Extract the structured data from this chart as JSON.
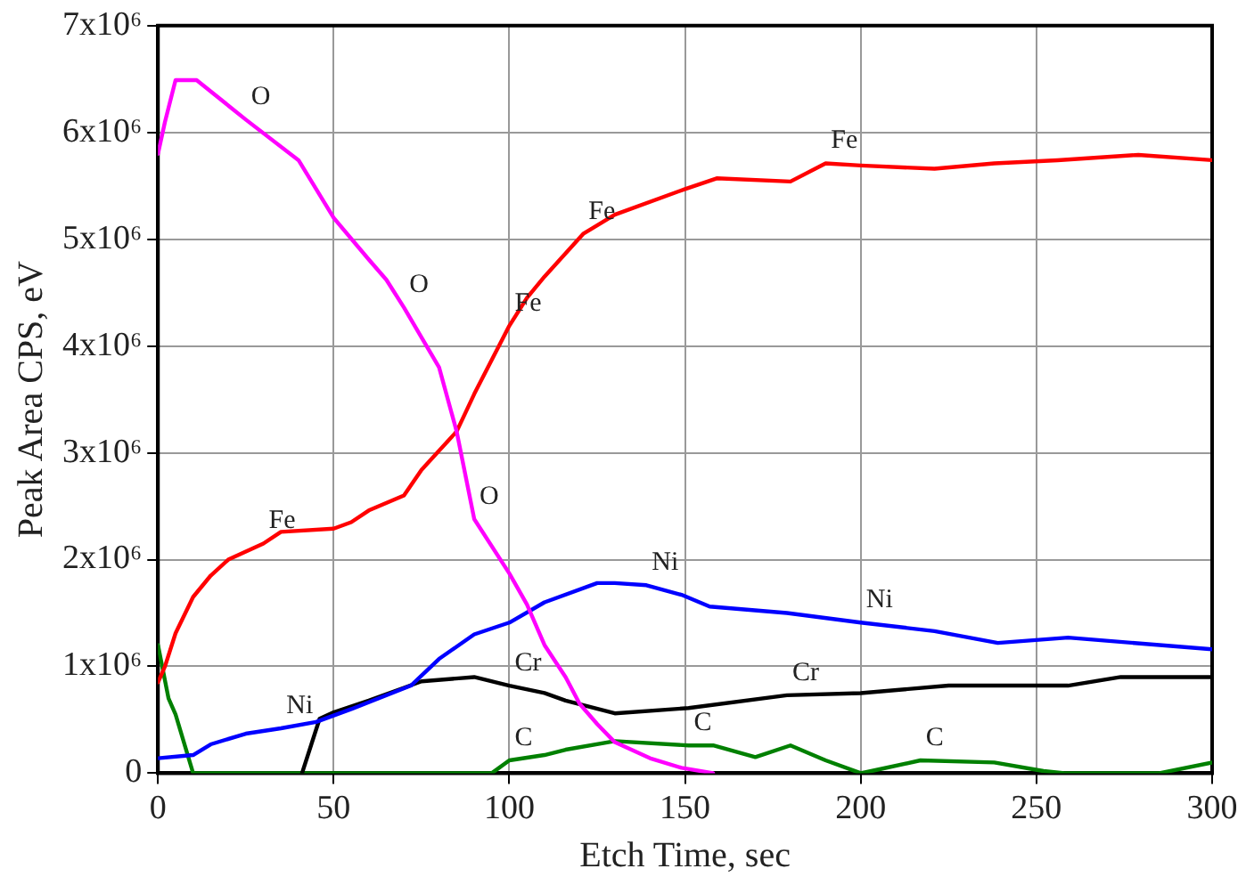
{
  "chart_data": {
    "type": "line",
    "xlabel": "Etch Time, sec",
    "ylabel": "Peak Area CPS, eV",
    "xlim": [
      0,
      300
    ],
    "xticks": [
      0,
      50,
      100,
      150,
      200,
      250,
      300
    ],
    "ylim": [
      0,
      7000000
    ],
    "yticks": [
      0,
      {
        "value": 1000000,
        "label": "1x10⁶"
      },
      {
        "value": 2000000,
        "label": "2x10⁶"
      },
      {
        "value": 3000000,
        "label": "3x10⁶"
      },
      {
        "value": 4000000,
        "label": "4x10⁶"
      },
      {
        "value": 5000000,
        "label": "5x10⁶"
      },
      {
        "value": 6000000,
        "label": "6x10⁶"
      },
      {
        "value": 7000000,
        "label": "7x10⁶"
      }
    ],
    "grid": true,
    "legend": false,
    "marker": "none",
    "line_style": "solid",
    "series": [
      {
        "color": "#ff00ff",
        "x": [
          0,
          2,
          5,
          11,
          25,
          40,
          50,
          60,
          65,
          70,
          80,
          85,
          90,
          100,
          105,
          110,
          116,
          120,
          125,
          130,
          140,
          149,
          158
        ],
        "values": [
          5800000,
          6100000,
          6490000,
          6490000,
          6120000,
          5740000,
          5200000,
          4810000,
          4620000,
          4360000,
          3800000,
          3200000,
          2380000,
          1870000,
          1580000,
          1200000,
          900000,
          650000,
          460000,
          290000,
          140000,
          50000,
          0
        ]
      },
      {
        "color": "#ff0000",
        "x": [
          0,
          2,
          5,
          10,
          15,
          20,
          30,
          35,
          50,
          55,
          60,
          70,
          75,
          85,
          90,
          100,
          105,
          110,
          121,
          130,
          150,
          159,
          180,
          190,
          200,
          221,
          238,
          256,
          279,
          300
        ],
        "values": [
          850000,
          1000000,
          1310000,
          1650000,
          1850000,
          2000000,
          2150000,
          2260000,
          2290000,
          2350000,
          2460000,
          2600000,
          2840000,
          3200000,
          3550000,
          4190000,
          4450000,
          4650000,
          5050000,
          5230000,
          5470000,
          5570000,
          5540000,
          5710000,
          5690000,
          5660000,
          5710000,
          5740000,
          5790000,
          5740000
        ]
      },
      {
        "color": "#0000ff",
        "x": [
          0,
          10,
          15,
          25,
          35,
          45,
          55,
          72,
          80,
          90,
          100,
          110,
          125,
          130,
          139,
          149,
          157,
          179,
          200,
          221,
          239,
          259,
          300
        ],
        "values": [
          140000,
          170000,
          270000,
          370000,
          420000,
          480000,
          600000,
          820000,
          1070000,
          1300000,
          1410000,
          1600000,
          1780000,
          1780000,
          1760000,
          1670000,
          1560000,
          1500000,
          1410000,
          1330000,
          1220000,
          1270000,
          1160000
        ]
      },
      {
        "color": "#000000",
        "x": [
          41,
          46,
          50,
          60,
          70,
          75,
          90,
          100,
          110,
          116,
          130,
          151,
          179,
          200,
          225,
          242,
          259,
          274,
          300
        ],
        "values": [
          0,
          510000,
          570000,
          680000,
          800000,
          860000,
          900000,
          820000,
          750000,
          680000,
          560000,
          610000,
          730000,
          750000,
          820000,
          820000,
          820000,
          900000,
          900000
        ]
      },
      {
        "color": "#008000",
        "x": [
          0,
          3,
          5,
          10,
          95,
          100,
          110,
          116,
          130,
          151,
          158,
          170,
          180,
          190,
          200,
          203,
          217,
          238,
          252,
          258,
          285,
          300
        ],
        "values": [
          1200000,
          700000,
          550000,
          0,
          0,
          120000,
          170000,
          220000,
          300000,
          260000,
          260000,
          150000,
          260000,
          120000,
          0,
          20000,
          120000,
          100000,
          20000,
          0,
          0,
          100000
        ]
      }
    ],
    "annotations": [
      {
        "text": "O",
        "x": 25,
        "y": 6120000
      },
      {
        "text": "O",
        "x": 70,
        "y": 4360000
      },
      {
        "text": "O",
        "x": 90,
        "y": 2380000
      },
      {
        "text": "Fe",
        "x": 30,
        "y": 2150000
      },
      {
        "text": "Fe",
        "x": 100,
        "y": 4190000
      },
      {
        "text": "Fe",
        "x": 121,
        "y": 5050000
      },
      {
        "text": "Fe",
        "x": 190,
        "y": 5710000
      },
      {
        "text": "Ni",
        "x": 35,
        "y": 420000
      },
      {
        "text": "Ni",
        "x": 139,
        "y": 1760000
      },
      {
        "text": "Ni",
        "x": 200,
        "y": 1410000
      },
      {
        "text": "Cr",
        "x": 100,
        "y": 820000
      },
      {
        "text": "Cr",
        "x": 179,
        "y": 730000
      },
      {
        "text": "C",
        "x": 100,
        "y": 120000
      },
      {
        "text": "C",
        "x": 151,
        "y": 260000
      },
      {
        "text": "C",
        "x": 217,
        "y": 120000
      }
    ]
  }
}
